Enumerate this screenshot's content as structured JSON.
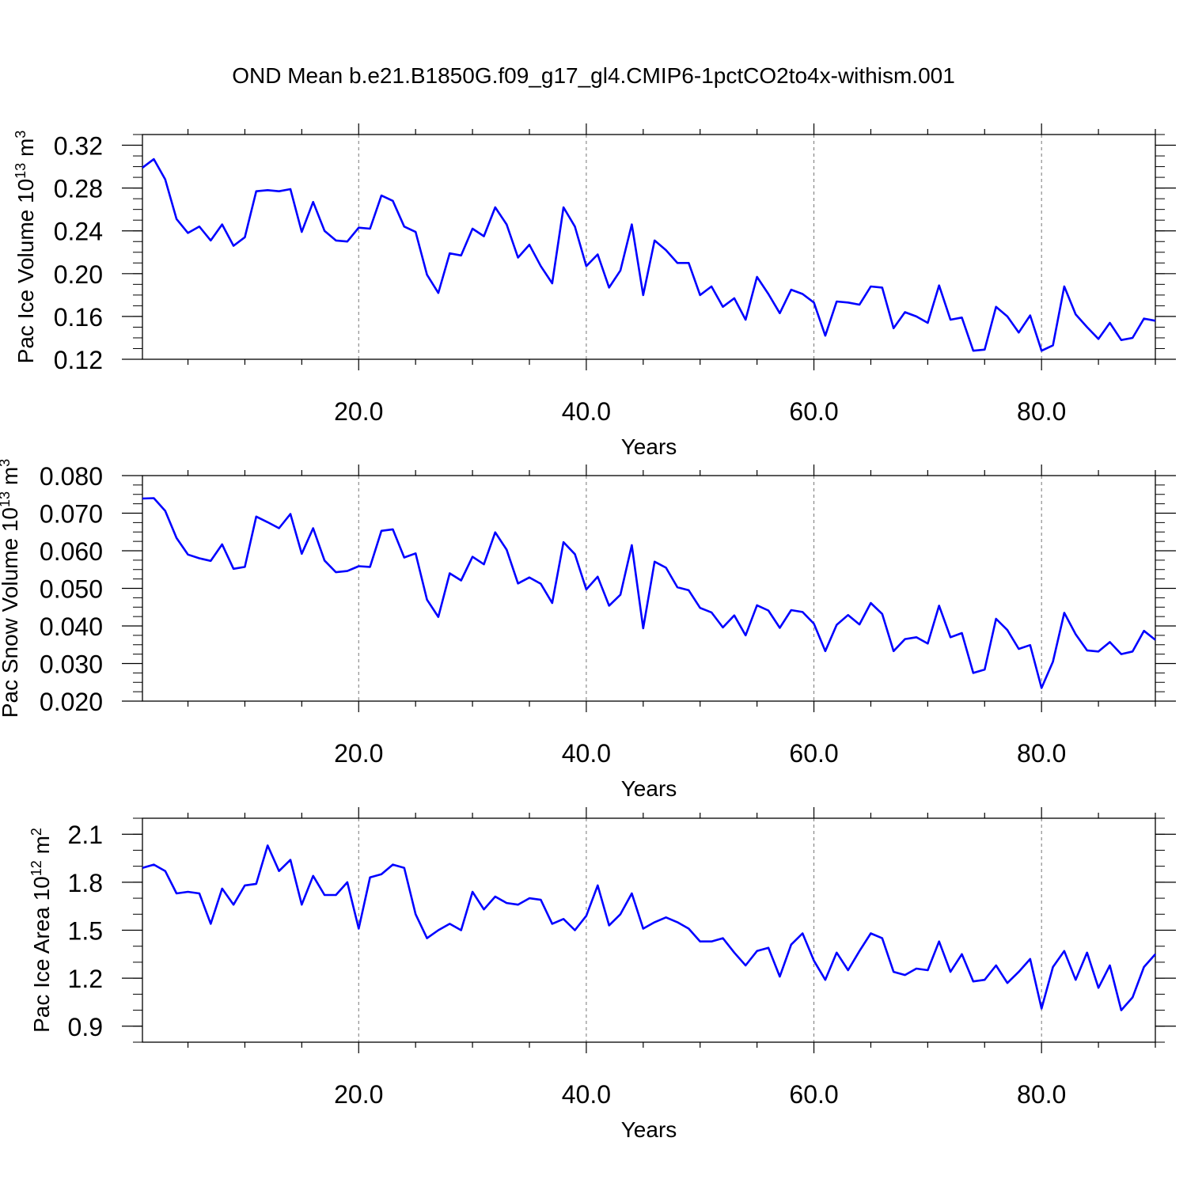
{
  "title": "OND Mean b.e21.B1850G.f09_g17_gl4.CMIP6-1pctCO2to4x-withism.001",
  "chart_data": [
    {
      "type": "line",
      "ylabel": "Pac Ice Volume",
      "yunit_base": "10",
      "yunit_exp": "13",
      "yunit_tail": "m",
      "yunit_tail_exp": "3",
      "xlabel": "Years",
      "xlim": [
        1,
        90
      ],
      "ylim": [
        0.12,
        0.33
      ],
      "yticks": [
        "0.12",
        "0.16",
        "0.20",
        "0.24",
        "0.28",
        "0.32"
      ],
      "xticks": [
        "20.0",
        "40.0",
        "60.0",
        "80.0"
      ],
      "line_color": "#0000ff",
      "grid": "vertical dashed at major x ticks",
      "series": [
        {
          "x": [
            1,
            2,
            3,
            4,
            5,
            6,
            7,
            8,
            9,
            10,
            11,
            12,
            13,
            14,
            15,
            16,
            17,
            18,
            19,
            20,
            21,
            22,
            23,
            24,
            25,
            26,
            27,
            28,
            29,
            30,
            31,
            32,
            33,
            34,
            35,
            36,
            37,
            38,
            39,
            40,
            41,
            42,
            43,
            44,
            45,
            46,
            47,
            48,
            49,
            50,
            51,
            52,
            53,
            54,
            55,
            56,
            57,
            58,
            59,
            60,
            61,
            62,
            63,
            64,
            65,
            66,
            67,
            68,
            69,
            70,
            71,
            72,
            73,
            74,
            75,
            76,
            77,
            78,
            79,
            80,
            81,
            82,
            83,
            84,
            85,
            86,
            87,
            88,
            89,
            90
          ],
          "values": [
            0.299,
            0.307,
            0.288,
            0.251,
            0.238,
            0.244,
            0.231,
            0.246,
            0.226,
            0.234,
            0.277,
            0.278,
            0.277,
            0.279,
            0.239,
            0.267,
            0.24,
            0.231,
            0.23,
            0.243,
            0.242,
            0.273,
            0.268,
            0.244,
            0.239,
            0.199,
            0.182,
            0.219,
            0.217,
            0.242,
            0.235,
            0.262,
            0.246,
            0.215,
            0.227,
            0.207,
            0.191,
            0.262,
            0.244,
            0.207,
            0.218,
            0.187,
            0.203,
            0.246,
            0.18,
            0.231,
            0.222,
            0.21,
            0.21,
            0.18,
            0.188,
            0.169,
            0.177,
            0.157,
            0.197,
            0.181,
            0.163,
            0.185,
            0.181,
            0.173,
            0.142,
            0.174,
            0.173,
            0.171,
            0.188,
            0.187,
            0.149,
            0.164,
            0.16,
            0.154,
            0.189,
            0.157,
            0.159,
            0.128,
            0.129,
            0.169,
            0.16,
            0.145,
            0.161,
            0.128,
            0.133,
            0.188,
            0.162,
            0.15,
            0.139,
            0.154,
            0.138,
            0.14,
            0.158,
            0.156
          ]
        }
      ]
    },
    {
      "type": "line",
      "ylabel": "Pac Snow Volume",
      "yunit_base": "10",
      "yunit_exp": "13",
      "yunit_tail": "m",
      "yunit_tail_exp": "3",
      "xlabel": "Years",
      "xlim": [
        1,
        90
      ],
      "ylim": [
        0.02,
        0.08
      ],
      "yticks": [
        "0.020",
        "0.030",
        "0.040",
        "0.050",
        "0.060",
        "0.070",
        "0.080"
      ],
      "xticks": [
        "20.0",
        "40.0",
        "60.0",
        "80.0"
      ],
      "line_color": "#0000ff",
      "grid": "vertical dashed at major x ticks",
      "series": [
        {
          "x": [
            1,
            2,
            3,
            4,
            5,
            6,
            7,
            8,
            9,
            10,
            11,
            12,
            13,
            14,
            15,
            16,
            17,
            18,
            19,
            20,
            21,
            22,
            23,
            24,
            25,
            26,
            27,
            28,
            29,
            30,
            31,
            32,
            33,
            34,
            35,
            36,
            37,
            38,
            39,
            40,
            41,
            42,
            43,
            44,
            45,
            46,
            47,
            48,
            49,
            50,
            51,
            52,
            53,
            54,
            55,
            56,
            57,
            58,
            59,
            60,
            61,
            62,
            63,
            64,
            65,
            66,
            67,
            68,
            69,
            70,
            71,
            72,
            73,
            74,
            75,
            76,
            77,
            78,
            79,
            80,
            81,
            82,
            83,
            84,
            85,
            86,
            87,
            88,
            89,
            90
          ],
          "values": [
            0.0739,
            0.074,
            0.0706,
            0.0634,
            0.059,
            0.058,
            0.0573,
            0.0617,
            0.0552,
            0.0557,
            0.0691,
            0.0676,
            0.066,
            0.0698,
            0.0592,
            0.066,
            0.0574,
            0.0543,
            0.0546,
            0.0559,
            0.0557,
            0.0653,
            0.0657,
            0.0582,
            0.0593,
            0.047,
            0.0424,
            0.054,
            0.0521,
            0.0584,
            0.0564,
            0.0649,
            0.0603,
            0.0513,
            0.0529,
            0.0512,
            0.0461,
            0.0623,
            0.0591,
            0.0497,
            0.0531,
            0.0454,
            0.0483,
            0.0615,
            0.0394,
            0.0571,
            0.0555,
            0.0503,
            0.0495,
            0.0448,
            0.0436,
            0.0396,
            0.0428,
            0.0375,
            0.0455,
            0.0441,
            0.0395,
            0.0442,
            0.0437,
            0.0406,
            0.0333,
            0.0403,
            0.0429,
            0.0404,
            0.0461,
            0.0432,
            0.0333,
            0.0365,
            0.037,
            0.0353,
            0.0454,
            0.037,
            0.0381,
            0.0275,
            0.0284,
            0.0419,
            0.0389,
            0.0339,
            0.0349,
            0.0235,
            0.0305,
            0.0435,
            0.0378,
            0.0335,
            0.0332,
            0.0357,
            0.0325,
            0.0332,
            0.0387,
            0.0363
          ]
        }
      ]
    },
    {
      "type": "line",
      "ylabel": "Pac Ice Area",
      "yunit_base": "10",
      "yunit_exp": "12",
      "yunit_tail": "m",
      "yunit_tail_exp": "2",
      "xlabel": "Years",
      "xlim": [
        1,
        90
      ],
      "ylim": [
        0.8,
        2.2
      ],
      "yticks": [
        "0.9",
        "1.2",
        "1.5",
        "1.8",
        "2.1"
      ],
      "xticks": [
        "20.0",
        "40.0",
        "60.0",
        "80.0"
      ],
      "line_color": "#0000ff",
      "grid": "vertical dashed at major x ticks",
      "series": [
        {
          "x": [
            1,
            2,
            3,
            4,
            5,
            6,
            7,
            8,
            9,
            10,
            11,
            12,
            13,
            14,
            15,
            16,
            17,
            18,
            19,
            20,
            21,
            22,
            23,
            24,
            25,
            26,
            27,
            28,
            29,
            30,
            31,
            32,
            33,
            34,
            35,
            36,
            37,
            38,
            39,
            40,
            41,
            42,
            43,
            44,
            45,
            46,
            47,
            48,
            49,
            50,
            51,
            52,
            53,
            54,
            55,
            56,
            57,
            58,
            59,
            60,
            61,
            62,
            63,
            64,
            65,
            66,
            67,
            68,
            69,
            70,
            71,
            72,
            73,
            74,
            75,
            76,
            77,
            78,
            79,
            80,
            81,
            82,
            83,
            84,
            85,
            86,
            87,
            88,
            89,
            90
          ],
          "values": [
            1.89,
            1.91,
            1.87,
            1.73,
            1.74,
            1.73,
            1.54,
            1.76,
            1.66,
            1.78,
            1.79,
            2.03,
            1.87,
            1.94,
            1.66,
            1.84,
            1.72,
            1.72,
            1.8,
            1.51,
            1.83,
            1.85,
            1.91,
            1.89,
            1.6,
            1.45,
            1.5,
            1.54,
            1.5,
            1.74,
            1.63,
            1.71,
            1.67,
            1.66,
            1.7,
            1.69,
            1.54,
            1.57,
            1.5,
            1.59,
            1.78,
            1.53,
            1.6,
            1.73,
            1.51,
            1.55,
            1.58,
            1.55,
            1.51,
            1.43,
            1.43,
            1.45,
            1.36,
            1.28,
            1.37,
            1.39,
            1.21,
            1.41,
            1.48,
            1.31,
            1.19,
            1.36,
            1.25,
            1.37,
            1.48,
            1.45,
            1.24,
            1.22,
            1.26,
            1.25,
            1.43,
            1.24,
            1.35,
            1.18,
            1.19,
            1.28,
            1.17,
            1.24,
            1.32,
            1.01,
            1.27,
            1.37,
            1.19,
            1.36,
            1.14,
            1.28,
            1.0,
            1.08,
            1.27,
            1.35
          ]
        }
      ]
    }
  ]
}
